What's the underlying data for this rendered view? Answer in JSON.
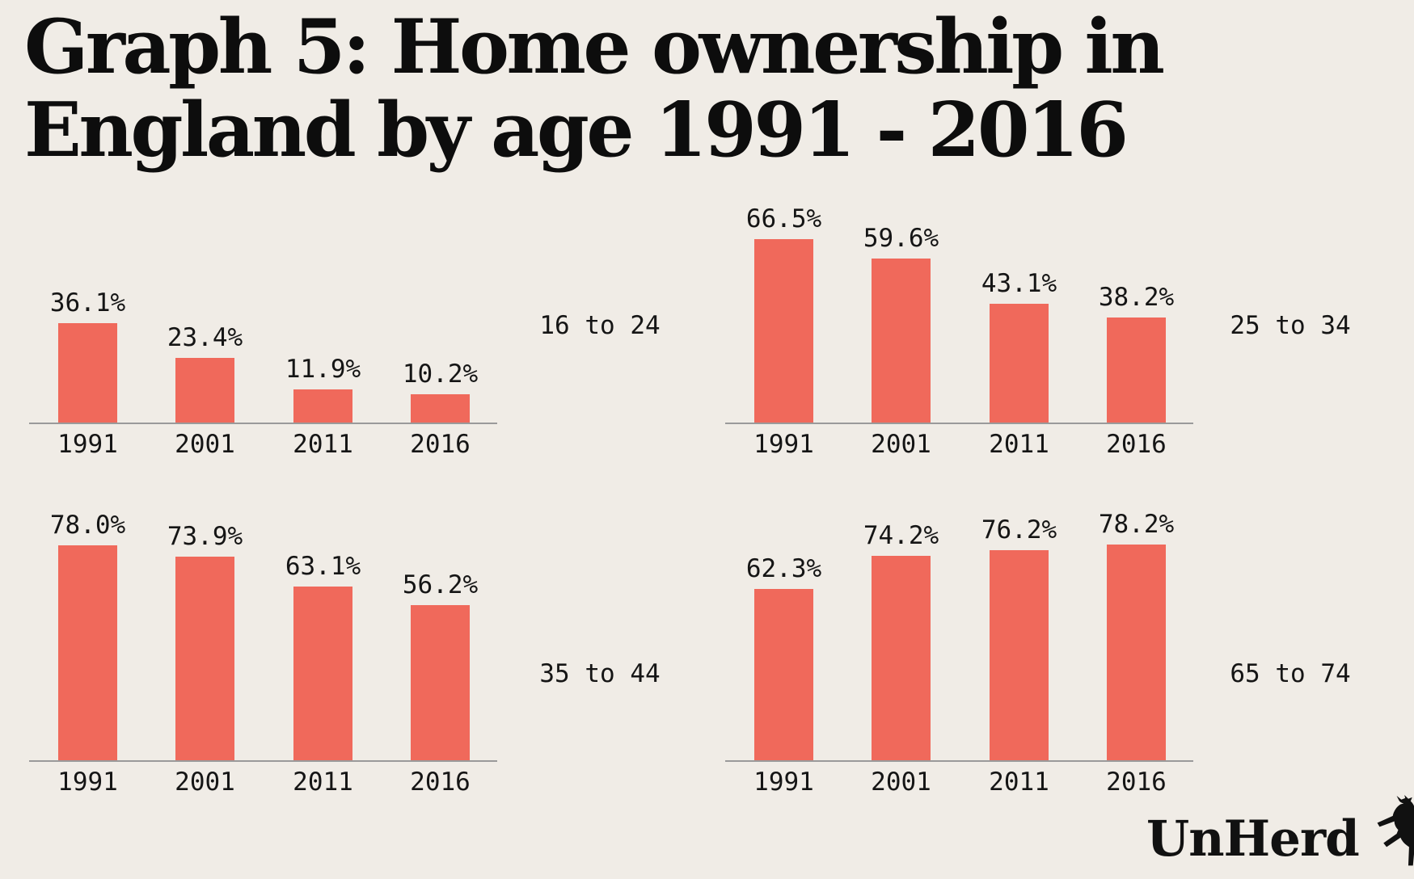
{
  "title": {
    "line1": "Graph 5: Home ownership in",
    "line2": "England by age 1991 - 2016"
  },
  "brand": {
    "wordmark": "UnHerd",
    "icon": "cow-icon"
  },
  "style": {
    "background": "#f0ece6",
    "bar_color": "#f0695b",
    "axis_color": "#9a9a9a",
    "text_color": "#151515",
    "title_color": "#0d0d0d"
  },
  "chart_data": [
    {
      "type": "bar",
      "title": "16 to 24",
      "categories": [
        "1991",
        "2001",
        "2011",
        "2016"
      ],
      "values": [
        36.1,
        23.4,
        11.9,
        10.2
      ],
      "value_labels": [
        "36.1%",
        "23.4%",
        "11.9%",
        "10.2%"
      ],
      "unit": "%",
      "ylim": [
        0,
        100
      ],
      "grid": false,
      "legend": "none"
    },
    {
      "type": "bar",
      "title": "25 to 34",
      "categories": [
        "1991",
        "2001",
        "2011",
        "2016"
      ],
      "values": [
        66.5,
        59.6,
        43.1,
        38.2
      ],
      "value_labels": [
        "66.5%",
        "59.6%",
        "43.1%",
        "38.2%"
      ],
      "unit": "%",
      "ylim": [
        0,
        100
      ],
      "grid": false,
      "legend": "none"
    },
    {
      "type": "bar",
      "title": "35 to 44",
      "categories": [
        "1991",
        "2001",
        "2011",
        "2016"
      ],
      "values": [
        78.0,
        73.9,
        63.1,
        56.2
      ],
      "value_labels": [
        "78.0%",
        "73.9%",
        "63.1%",
        "56.2%"
      ],
      "unit": "%",
      "ylim": [
        0,
        100
      ],
      "grid": false,
      "legend": "none"
    },
    {
      "type": "bar",
      "title": "65 to 74",
      "categories": [
        "1991",
        "2001",
        "2011",
        "2016"
      ],
      "values": [
        62.3,
        74.2,
        76.2,
        78.2
      ],
      "value_labels": [
        "62.3%",
        "74.2%",
        "76.2%",
        "78.2%"
      ],
      "unit": "%",
      "ylim": [
        0,
        100
      ],
      "grid": false,
      "legend": "none"
    }
  ]
}
